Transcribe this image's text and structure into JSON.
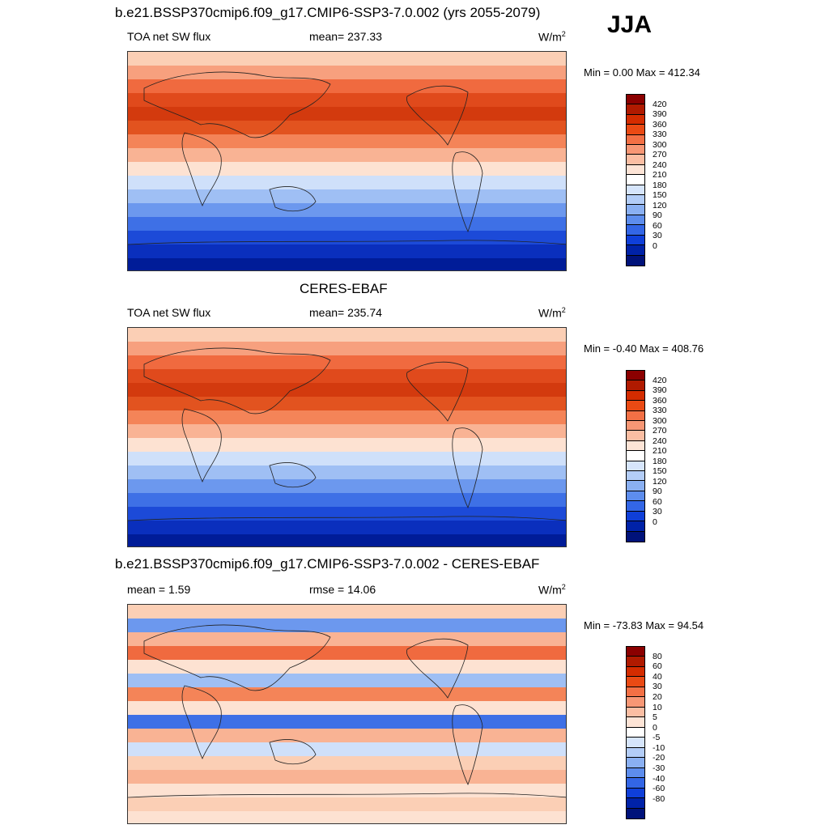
{
  "season": "JJA",
  "panels": [
    {
      "title": "b.e21.BSSP370cmip6.f09_g17.CMIP6-SSP3-7.0.002 (yrs 2055-2079)",
      "left_label": "TOA net SW flux",
      "center_label": "mean= 237.33",
      "units_base": "W/m",
      "units_exp": "2",
      "minmax": "Min =   0.00 Max = 412.34",
      "kind": "abs"
    },
    {
      "title": "CERES-EBAF",
      "left_label": "TOA net SW flux",
      "center_label": "mean= 235.74",
      "units_base": "W/m",
      "units_exp": "2",
      "minmax": "Min =  -0.40 Max = 408.76",
      "kind": "abs"
    },
    {
      "title": "b.e21.BSSP370cmip6.f09_g17.CMIP6-SSP3-7.0.002 - CERES-EBAF",
      "left_label": "mean =   1.59",
      "center_label": "rmse =  14.06",
      "units_base": "W/m",
      "units_exp": "2",
      "minmax": "Min = -73.83 Max =  94.54",
      "kind": "diff"
    }
  ],
  "colorbars": {
    "abs": {
      "labels": [
        "420",
        "390",
        "360",
        "330",
        "300",
        "270",
        "240",
        "210",
        "180",
        "150",
        "120",
        "90",
        "60",
        "30",
        "0"
      ],
      "colors": [
        "#8b0000",
        "#b01a00",
        "#d42c00",
        "#ea4a14",
        "#f37045",
        "#f79775",
        "#fbbea3",
        "#fde4d6",
        "#ffffff",
        "#d6e5fb",
        "#b3cdf7",
        "#8ab0f2",
        "#5d8ded",
        "#3366e6",
        "#0f3fd9",
        "#0022a8",
        "#00127a"
      ]
    },
    "diff": {
      "labels": [
        "80",
        "60",
        "40",
        "30",
        "20",
        "10",
        "5",
        "0",
        "-5",
        "-10",
        "-20",
        "-30",
        "-40",
        "-60",
        "-80"
      ],
      "colors": [
        "#8b0000",
        "#b01a00",
        "#d42c00",
        "#ea4a14",
        "#f37045",
        "#f79775",
        "#fbbea3",
        "#fde4d6",
        "#ffffff",
        "#d6e5fb",
        "#b3cdf7",
        "#8ab0f2",
        "#5d8ded",
        "#3366e6",
        "#0f3fd9",
        "#0022a8",
        "#00127a"
      ]
    }
  },
  "map_zones": {
    "abs": [
      "#fbcfb5",
      "#f7a07e",
      "#f06a3f",
      "#e04a1c",
      "#d33a0e",
      "#e2531f",
      "#f48458",
      "#f9b394",
      "#fde2d2",
      "#cfe0fa",
      "#9fbff4",
      "#6c98ee",
      "#3e70e6",
      "#1c4ad8",
      "#0a2fbd",
      "#001c98"
    ],
    "diff": [
      "#fbcfb5",
      "#6c98ee",
      "#f9b394",
      "#f06a3f",
      "#fde2d2",
      "#9fbff4",
      "#f48458",
      "#fde2d2",
      "#3e70e6",
      "#f9b394",
      "#cfe0fa",
      "#fbcfb5",
      "#f9b394",
      "#fde2d2",
      "#fbcfb5",
      "#fde2d2"
    ]
  }
}
